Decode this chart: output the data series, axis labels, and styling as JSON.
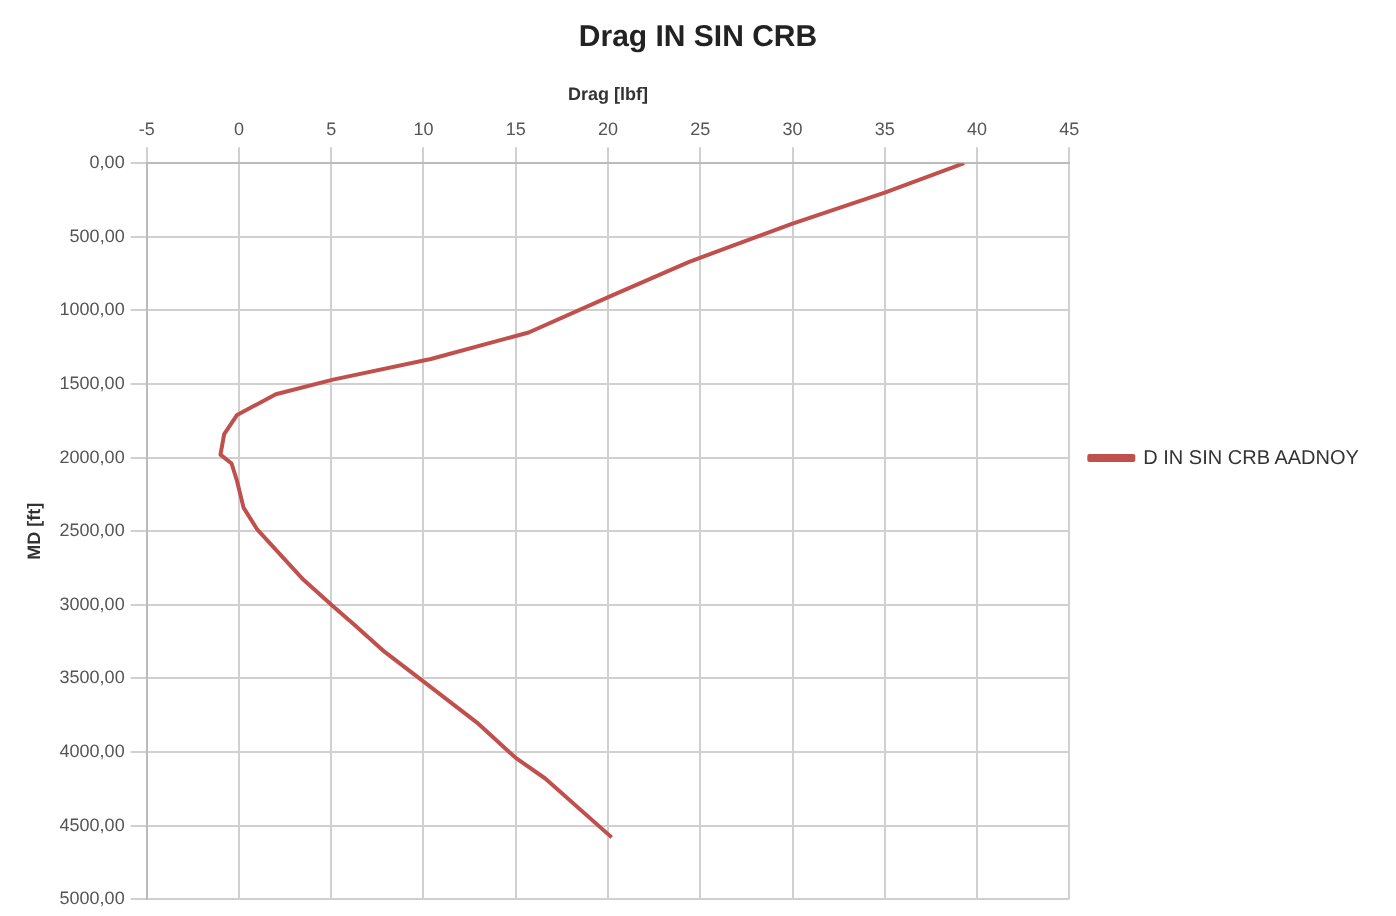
{
  "chart_data": {
    "type": "line",
    "title": "Drag IN SIN CRB",
    "xlabel": "Drag [lbf]",
    "ylabel": "MD [ft]",
    "xlim": [
      -5,
      45
    ],
    "xticks": [
      -5,
      0,
      5,
      10,
      15,
      20,
      25,
      30,
      35,
      40,
      45
    ],
    "ylim": [
      5000,
      0
    ],
    "yticks": [
      {
        "value": 0,
        "label": "0,00"
      },
      {
        "value": 500,
        "label": "500,00"
      },
      {
        "value": 1000,
        "label": "1000,00"
      },
      {
        "value": 1500,
        "label": "1500,00"
      },
      {
        "value": 2000,
        "label": "2000,00"
      },
      {
        "value": 2500,
        "label": "2500,00"
      },
      {
        "value": 3000,
        "label": "3000,00"
      },
      {
        "value": 3500,
        "label": "3500,00"
      },
      {
        "value": 4000,
        "label": "4000,00"
      },
      {
        "value": 4500,
        "label": "4500,00"
      },
      {
        "value": 5000,
        "label": "5000,00"
      }
    ],
    "grid": true,
    "legend": "right",
    "marker": "none",
    "line_style": "solid",
    "series": [
      {
        "name": "D IN SIN CRB AADNOY",
        "color": "#c0504d",
        "x": [
          39.3,
          35,
          30,
          24.4,
          20.2,
          15.7,
          10.4,
          5.1,
          2.0,
          -0.1,
          -0.8,
          -1.0,
          -0.4,
          -0.1,
          0.25,
          1.0,
          3.5,
          5.1,
          6.3,
          7.9,
          10.1,
          12.9,
          15.0,
          16.6,
          20.2
        ],
        "values": [
          0,
          200,
          410,
          670,
          900,
          1150,
          1330,
          1470,
          1570,
          1710,
          1840,
          1980,
          2040,
          2160,
          2340,
          2490,
          2830,
          3010,
          3140,
          3320,
          3530,
          3800,
          4040,
          4180,
          4580
        ]
      }
    ]
  }
}
